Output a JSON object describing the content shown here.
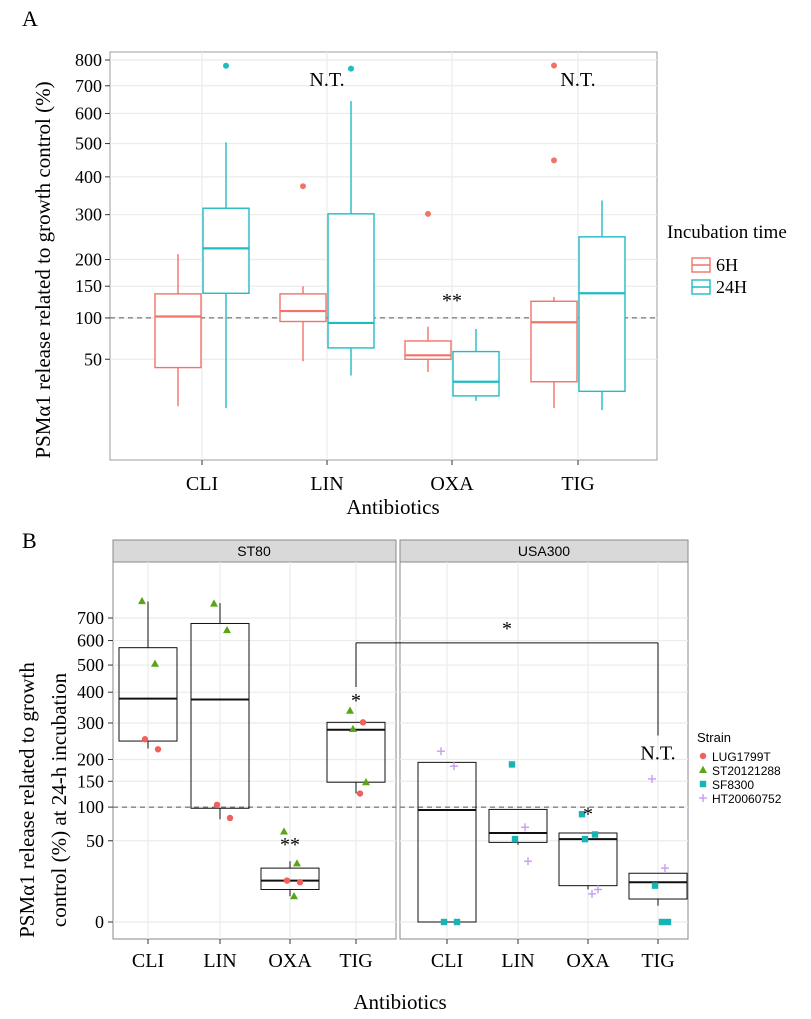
{
  "colors": {
    "six_h": "#f0746a",
    "twentyfour_h": "#1fbcc4",
    "lug": "#f0605c",
    "st2012": "#5aa514",
    "sf8300": "#18b3b3",
    "ht2006": "#c79cf0",
    "panel_bg": "#ffffff",
    "grid": "#ebebeb",
    "strip": "#d9d9d9"
  },
  "chart_data": [
    {
      "type": "box",
      "panel_label": "A",
      "xlabel": "Antibiotics",
      "ylabel": "PSMα1 release related to growth control (%)",
      "categories": [
        "CLI",
        "LIN",
        "OXA",
        "TIG"
      ],
      "y_scale": "sqrt",
      "ylim": [
        0,
        820
      ],
      "yticks": [
        "800",
        "700",
        "600",
        "500",
        "400",
        "300",
        "200",
        "150",
        "100",
        "50"
      ],
      "ytick_values": [
        800,
        700,
        600,
        500,
        400,
        300,
        200,
        150,
        100,
        50
      ],
      "reference_line": 100,
      "legend": {
        "title": "Incubation time",
        "position": "right",
        "labels": [
          "6H",
          "24H"
        ]
      },
      "series": [
        {
          "name": "6H",
          "boxes": [
            {
              "lower": 14,
              "q1": 42,
              "median": 102,
              "q3": 137,
              "upper": 211,
              "outliers": []
            },
            {
              "lower": 48,
              "q1": 95,
              "median": 110,
              "q3": 137,
              "upper": 150,
              "outliers": [
                374
              ]
            },
            {
              "lower": 38,
              "q1": 50,
              "median": 54,
              "q3": 70,
              "upper": 88,
              "outliers": [
                302
              ]
            },
            {
              "lower": 13,
              "q1": 30,
              "median": 94,
              "q3": 125,
              "upper": 132,
              "outliers": [
                448,
                778
              ]
            }
          ]
        },
        {
          "name": "24H",
          "boxes": [
            {
              "lower": 13,
              "q1": 138,
              "median": 223,
              "q3": 316,
              "upper": 504,
              "outliers": [
                777
              ]
            },
            {
              "lower": 35,
              "q1": 62,
              "median": 93,
              "q3": 302,
              "upper": 644,
              "outliers": [
                766
              ]
            },
            {
              "lower": 17,
              "q1": 20,
              "median": 30,
              "q3": 58,
              "upper": 85,
              "outliers": []
            },
            {
              "lower": 12,
              "q1": 23,
              "median": 138,
              "q3": 248,
              "upper": 336,
              "outliers": []
            }
          ]
        }
      ],
      "annotations": [
        {
          "text": "N.T.",
          "category": "LIN",
          "y": 700
        },
        {
          "text": "N.T.",
          "category": "TIG",
          "y": 700
        },
        {
          "text": "**",
          "category": "OXA",
          "y": 116
        }
      ]
    },
    {
      "type": "box",
      "panel_label": "B",
      "xlabel": "Antibiotics",
      "ylabel_lines": [
        "PSMα1 release related to growth",
        "control (%) at 24-h incubation"
      ],
      "categories": [
        "CLI",
        "LIN",
        "OXA",
        "TIG"
      ],
      "y_scale": "sqrt",
      "ylim": [
        0,
        800
      ],
      "yticks": [
        "700",
        "600",
        "500",
        "400",
        "300",
        "200",
        "150",
        "100",
        "50",
        "0"
      ],
      "ytick_values": [
        700,
        600,
        500,
        400,
        300,
        200,
        150,
        100,
        50,
        0
      ],
      "reference_line": 100,
      "legend": {
        "title": "Strain",
        "position": "right",
        "labels": [
          "LUG1799T",
          "ST20121288",
          "SF8300",
          "HT20060752"
        ]
      },
      "facets": [
        {
          "name": "ST80",
          "boxes": [
            {
              "lower": 228,
              "q1": 248,
              "median": 378,
              "q3": 570,
              "upper": 778
            },
            {
              "lower": 80,
              "q1": 98,
              "median": 375,
              "q3": 675,
              "upper": 770
            },
            {
              "lower": 5,
              "q1": 8,
              "median": 13,
              "q3": 22,
              "upper": 28
            },
            {
              "lower": 125,
              "q1": 148,
              "median": 280,
              "q3": 302,
              "upper": 303
            }
          ],
          "points": [
            {
              "category": "CLI",
              "strain": "ST20121288",
              "y": 780
            },
            {
              "category": "CLI",
              "strain": "ST20121288",
              "y": 505
            },
            {
              "category": "CLI",
              "strain": "LUG1799T",
              "y": 253
            },
            {
              "category": "CLI",
              "strain": "LUG1799T",
              "y": 226
            },
            {
              "category": "LIN",
              "strain": "ST20121288",
              "y": 768
            },
            {
              "category": "LIN",
              "strain": "ST20121288",
              "y": 645
            },
            {
              "category": "LIN",
              "strain": "LUG1799T",
              "y": 104
            },
            {
              "category": "LIN",
              "strain": "LUG1799T",
              "y": 82
            },
            {
              "category": "OXA",
              "strain": "ST20121288",
              "y": 62
            },
            {
              "category": "OXA",
              "strain": "ST20121288",
              "y": 26
            },
            {
              "category": "OXA",
              "strain": "LUG1799T",
              "y": 13
            },
            {
              "category": "OXA",
              "strain": "LUG1799T",
              "y": 12
            },
            {
              "category": "OXA",
              "strain": "ST20121288",
              "y": 5
            },
            {
              "category": "TIG",
              "strain": "ST20121288",
              "y": 338
            },
            {
              "category": "TIG",
              "strain": "LUG1799T",
              "y": 302
            },
            {
              "category": "TIG",
              "strain": "ST20121288",
              "y": 282
            },
            {
              "category": "TIG",
              "strain": "ST20121288",
              "y": 148
            },
            {
              "category": "TIG",
              "strain": "LUG1799T",
              "y": 125
            }
          ],
          "annotations": [
            {
              "text": "**",
              "category": "OXA",
              "y": 38
            },
            {
              "text": "*",
              "category": "TIG",
              "y": 350
            }
          ]
        },
        {
          "name": "USA300",
          "boxes": [
            {
              "lower": 0,
              "q1": 0,
              "median": 95,
              "q3": 193,
              "upper": 193
            },
            {
              "lower": 45,
              "q1": 48,
              "median": 60,
              "q3": 96,
              "upper": 96
            },
            {
              "lower": 8,
              "q1": 10,
              "median": 52,
              "q3": 60,
              "upper": 60
            },
            {
              "lower": 2,
              "q1": 4,
              "median": 12,
              "q3": 18,
              "upper": 18
            }
          ],
          "points": [
            {
              "category": "CLI",
              "strain": "HT20060752",
              "y": 221
            },
            {
              "category": "CLI",
              "strain": "HT20060752",
              "y": 184
            },
            {
              "category": "CLI",
              "strain": "SF8300",
              "y": 0
            },
            {
              "category": "CLI",
              "strain": "SF8300",
              "y": 0
            },
            {
              "category": "LIN",
              "strain": "SF8300",
              "y": 188
            },
            {
              "category": "LIN",
              "strain": "HT20060752",
              "y": 68
            },
            {
              "category": "LIN",
              "strain": "SF8300",
              "y": 52
            },
            {
              "category": "LIN",
              "strain": "HT20060752",
              "y": 28
            },
            {
              "category": "OXA",
              "strain": "SF8300",
              "y": 88
            },
            {
              "category": "OXA",
              "strain": "SF8300",
              "y": 58
            },
            {
              "category": "OXA",
              "strain": "SF8300",
              "y": 52
            },
            {
              "category": "OXA",
              "strain": "HT20060752",
              "y": 8
            },
            {
              "category": "OXA",
              "strain": "HT20060752",
              "y": 6
            },
            {
              "category": "TIG",
              "strain": "HT20060752",
              "y": 155
            },
            {
              "category": "TIG",
              "strain": "HT20060752",
              "y": 22
            },
            {
              "category": "TIG",
              "strain": "SF8300",
              "y": 10
            },
            {
              "category": "TIG",
              "strain": "SF8300",
              "y": 0
            },
            {
              "category": "TIG",
              "strain": "SF8300",
              "y": 0
            }
          ],
          "annotations": [
            {
              "text": "*",
              "category": "OXA",
              "y": 78
            },
            {
              "text": "N.T.",
              "category": "TIG",
              "y": 200
            }
          ]
        }
      ],
      "bracket": {
        "from": "ST80/TIG",
        "to": "USA300/TIG",
        "y": 590,
        "text": "*"
      }
    }
  ]
}
